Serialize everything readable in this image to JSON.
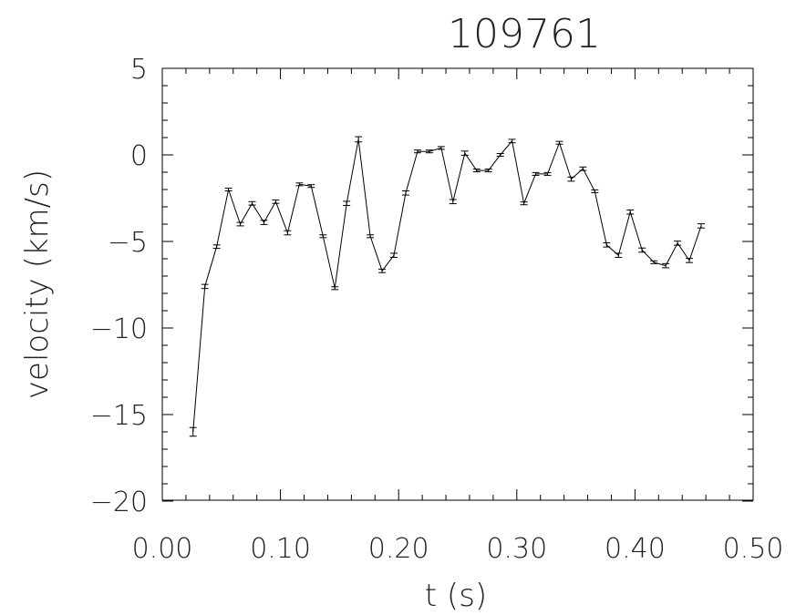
{
  "chart_data": {
    "type": "line",
    "title": "109761",
    "xlabel": "t (s)",
    "ylabel": "velocity (km/s)",
    "xlim": [
      0.0,
      0.5
    ],
    "ylim": [
      -20,
      5
    ],
    "xticks": [
      0.0,
      0.1,
      0.2,
      0.3,
      0.4,
      0.5
    ],
    "xtick_labels": [
      "0.00",
      "0.10",
      "0.20",
      "0.30",
      "0.40",
      "0.50"
    ],
    "yticks": [
      -20,
      -15,
      -10,
      -5,
      0,
      5
    ],
    "ytick_labels": [
      "−20",
      "−15",
      "−10",
      "−5",
      "0",
      "5"
    ],
    "grid": false,
    "series": [
      {
        "x": [
          0.026,
          0.036,
          0.046,
          0.056,
          0.066,
          0.076,
          0.086,
          0.096,
          0.106,
          0.116,
          0.126,
          0.136,
          0.146,
          0.156,
          0.166,
          0.176,
          0.186,
          0.196,
          0.206,
          0.216,
          0.226,
          0.236,
          0.246,
          0.256,
          0.266,
          0.276,
          0.286,
          0.296,
          0.306,
          0.316,
          0.326,
          0.336,
          0.346,
          0.356,
          0.366,
          0.376,
          0.386,
          0.396,
          0.406,
          0.416,
          0.426,
          0.436,
          0.446,
          0.456
        ],
        "y": [
          -16.0,
          -7.6,
          -5.3,
          -2.0,
          -4.0,
          -2.8,
          -3.9,
          -2.7,
          -4.5,
          -1.7,
          -1.8,
          -4.7,
          -7.7,
          -2.8,
          0.9,
          -4.7,
          -6.7,
          -5.8,
          -2.2,
          0.2,
          0.2,
          0.4,
          -2.7,
          0.1,
          -0.9,
          -0.9,
          0.0,
          0.8,
          -2.8,
          -1.1,
          -1.1,
          0.7,
          -1.4,
          -0.8,
          -2.1,
          -5.2,
          -5.8,
          -3.3,
          -5.5,
          -6.2,
          -6.4,
          -5.1,
          -6.1,
          -4.1
        ],
        "error": [
          0.25,
          0.12,
          0.1,
          0.08,
          0.1,
          0.1,
          0.12,
          0.1,
          0.12,
          0.08,
          0.08,
          0.08,
          0.08,
          0.12,
          0.15,
          0.08,
          0.1,
          0.12,
          0.12,
          0.08,
          0.08,
          0.08,
          0.12,
          0.12,
          0.08,
          0.08,
          0.08,
          0.1,
          0.08,
          0.08,
          0.08,
          0.08,
          0.12,
          0.1,
          0.08,
          0.12,
          0.12,
          0.12,
          0.12,
          0.08,
          0.12,
          0.12,
          0.12,
          0.12
        ]
      }
    ]
  }
}
